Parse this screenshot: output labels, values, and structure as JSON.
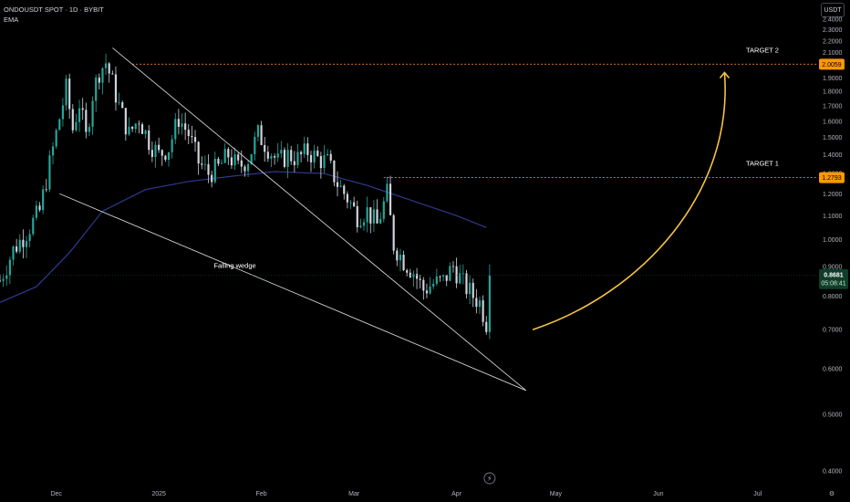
{
  "header": {
    "symbol_line": "ONDOUSDT SPOT · 1D · BYBIT",
    "indicator": "EMA"
  },
  "currency_button": "USDT",
  "colors": {
    "background": "#000000",
    "up_candle": "#26a69a",
    "down_candle": "#d1d4dc",
    "ema_line": "#2e3a8c",
    "wedge_lines": "#cfcfcf",
    "target_lines": "#f0842a",
    "arrow": "#f6c343",
    "price_tag": "#0f3d2a",
    "target_tag": "#ff9800"
  },
  "chart_data": {
    "type": "candlestick",
    "title": "ONDOUSDT SPOT · 1D · BYBIT",
    "y_scale": "log",
    "ylim": [
      0.38,
      2.55
    ],
    "y_ticks": [
      0.4,
      0.5,
      0.6,
      0.7,
      0.8,
      0.9,
      1.0,
      1.1,
      1.2,
      1.3,
      1.4,
      1.5,
      1.6,
      1.7,
      1.8,
      1.9,
      2.0,
      2.1,
      2.2,
      2.3,
      2.4
    ],
    "y_tick_labels": [
      "0.4000",
      "0.5000",
      "0.6000",
      "0.7000",
      "0.8000",
      "0.9000",
      "1.0000",
      "1.1000",
      "1.2000",
      "1.3000",
      "1.4000",
      "1.5000",
      "1.6000",
      "1.7000",
      "1.8000",
      "1.9000",
      "2.0000",
      "2.1000",
      "2.2000",
      "2.3000",
      "2.4000"
    ],
    "x_range": [
      "2024-11-14",
      "2025-07-19"
    ],
    "x_ticks": [
      {
        "date": "2024-12-01",
        "label": "Dec"
      },
      {
        "date": "2025-01-01",
        "label": "2025"
      },
      {
        "date": "2025-02-01",
        "label": "Feb"
      },
      {
        "date": "2025-03-01",
        "label": "Mar"
      },
      {
        "date": "2025-04-01",
        "label": "Apr"
      },
      {
        "date": "2025-05-01",
        "label": "May"
      },
      {
        "date": "2025-06-01",
        "label": "Jun"
      },
      {
        "date": "2025-07-01",
        "label": "Jul"
      }
    ],
    "close_series": [
      [
        "2024-11-14",
        0.85
      ],
      [
        "2024-11-18",
        0.96
      ],
      [
        "2024-11-22",
        1.03
      ],
      [
        "2024-11-26",
        1.12
      ],
      [
        "2024-11-29",
        1.35
      ],
      [
        "2024-12-02",
        1.62
      ],
      [
        "2024-12-04",
        1.82
      ],
      [
        "2024-12-06",
        1.55
      ],
      [
        "2024-12-08",
        1.72
      ],
      [
        "2024-12-10",
        1.5
      ],
      [
        "2024-12-12",
        1.78
      ],
      [
        "2024-12-14",
        1.95
      ],
      [
        "2024-12-16",
        2.02
      ],
      [
        "2024-12-18",
        1.86
      ],
      [
        "2024-12-20",
        1.7
      ],
      [
        "2024-12-23",
        1.52
      ],
      [
        "2024-12-26",
        1.62
      ],
      [
        "2024-12-29",
        1.48
      ],
      [
        "2025-01-01",
        1.4
      ],
      [
        "2025-01-04",
        1.44
      ],
      [
        "2025-01-07",
        1.62
      ],
      [
        "2025-01-10",
        1.52
      ],
      [
        "2025-01-13",
        1.36
      ],
      [
        "2025-01-16",
        1.3
      ],
      [
        "2025-01-19",
        1.33
      ],
      [
        "2025-01-22",
        1.4
      ],
      [
        "2025-01-25",
        1.33
      ],
      [
        "2025-01-28",
        1.38
      ],
      [
        "2025-01-31",
        1.52
      ],
      [
        "2025-02-03",
        1.44
      ],
      [
        "2025-02-06",
        1.36
      ],
      [
        "2025-02-09",
        1.4
      ],
      [
        "2025-02-12",
        1.38
      ],
      [
        "2025-02-15",
        1.42
      ],
      [
        "2025-02-18",
        1.38
      ],
      [
        "2025-02-21",
        1.36
      ],
      [
        "2025-02-24",
        1.25
      ],
      [
        "2025-02-27",
        1.18
      ],
      [
        "2025-03-02",
        1.1
      ],
      [
        "2025-03-05",
        1.12
      ],
      [
        "2025-03-08",
        1.06
      ],
      [
        "2025-03-11",
        1.2
      ],
      [
        "2025-03-13",
        0.98
      ],
      [
        "2025-03-16",
        0.92
      ],
      [
        "2025-03-19",
        0.88
      ],
      [
        "2025-03-22",
        0.82
      ],
      [
        "2025-03-25",
        0.84
      ],
      [
        "2025-03-28",
        0.85
      ],
      [
        "2025-03-31",
        0.9
      ],
      [
        "2025-04-03",
        0.84
      ],
      [
        "2025-04-06",
        0.8
      ],
      [
        "2025-04-08",
        0.78
      ],
      [
        "2025-04-10",
        0.72
      ],
      [
        "2025-04-11",
        0.8681
      ]
    ],
    "ema_line": [
      [
        "2024-11-14",
        0.78
      ],
      [
        "2024-11-25",
        0.83
      ],
      [
        "2024-12-05",
        0.95
      ],
      [
        "2024-12-15",
        1.12
      ],
      [
        "2024-12-28",
        1.22
      ],
      [
        "2025-01-10",
        1.26
      ],
      [
        "2025-01-25",
        1.29
      ],
      [
        "2025-02-05",
        1.31
      ],
      [
        "2025-02-20",
        1.3
      ],
      [
        "2025-03-05",
        1.24
      ],
      [
        "2025-03-20",
        1.16
      ],
      [
        "2025-04-01",
        1.1
      ],
      [
        "2025-04-10",
        1.05
      ]
    ],
    "wedge_upper": [
      [
        "2024-12-18",
        2.14
      ],
      [
        "2025-04-22",
        0.55
      ]
    ],
    "wedge_lower": [
      [
        "2024-12-02",
        1.2
      ],
      [
        "2025-04-22",
        0.55
      ]
    ],
    "current_price": 0.8681,
    "current_price_label": "0.8681",
    "countdown": "05:08:41",
    "targets": [
      {
        "label": "TARGET 1",
        "value": 1.2793,
        "value_label": "1.2793"
      },
      {
        "label": "TARGET 2",
        "value": 2.0059,
        "value_label": "2.0059"
      }
    ],
    "annotation": "Falling wedge"
  }
}
